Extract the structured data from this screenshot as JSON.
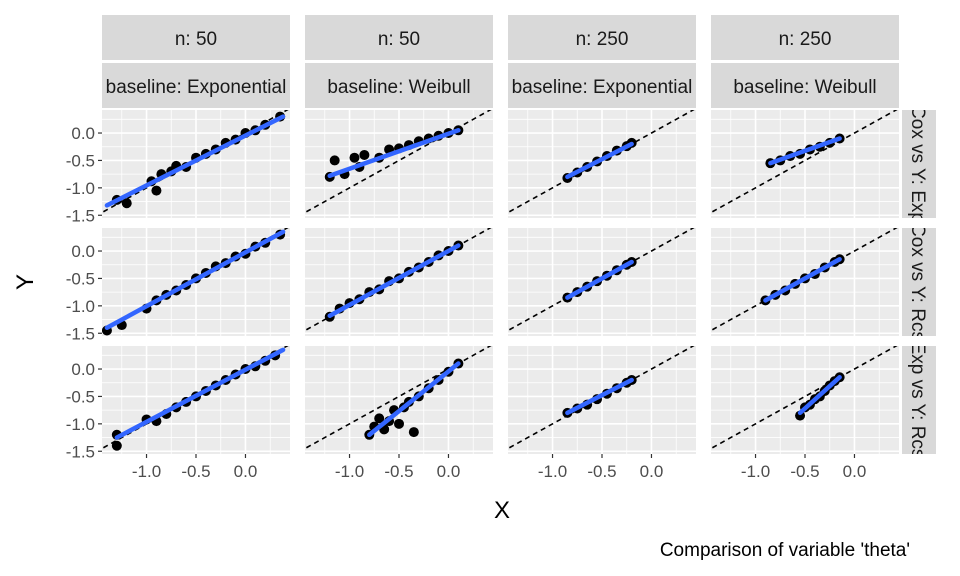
{
  "axis_titles": {
    "x": "X",
    "y": "Y"
  },
  "caption": "Comparison of variable 'theta'",
  "colors": {
    "panel_bg": "#ebebeb",
    "grid": "#ffffff",
    "strip_bg": "#d9d9d9",
    "point": "#000000",
    "fit": "#3366ff",
    "reference": "#000000",
    "axis_text": "#4d4d4d"
  },
  "chart_data": {
    "type": "scatter",
    "facet_columns": [
      {
        "n_label": "n: 50",
        "baseline_label": "baseline: Exponential"
      },
      {
        "n_label": "n: 50",
        "baseline_label": "baseline: Weibull"
      },
      {
        "n_label": "n: 250",
        "baseline_label": "baseline: Exponential"
      },
      {
        "n_label": "n: 250",
        "baseline_label": "baseline: Weibull"
      }
    ],
    "facet_rows": [
      {
        "label": "Cox vs Y: Exp"
      },
      {
        "label": "Cox vs Y: Rcs"
      },
      {
        "label": "Exp vs Y: Rcs"
      }
    ],
    "xlim": [
      -1.45,
      0.45
    ],
    "ylim": [
      -1.55,
      0.42
    ],
    "x_ticks": [
      -1.0,
      -0.5,
      0.0
    ],
    "x_tick_labels": [
      "-1.0",
      "-0.5",
      "0.0"
    ],
    "y_ticks": [
      -1.5,
      -1.0,
      -0.5,
      0.0
    ],
    "y_tick_labels": [
      "-1.5",
      "-1.0",
      "-0.5",
      "0.0"
    ],
    "reference_line": {
      "type": "identity",
      "style": "dashed"
    },
    "grid": true,
    "panels": [
      {
        "row": 0,
        "col": 0,
        "fit": [
          [
            -1.4,
            -1.32
          ],
          [
            0.38,
            0.3
          ]
        ],
        "points": [
          [
            -1.3,
            -1.22
          ],
          [
            -1.2,
            -1.28
          ],
          [
            -0.95,
            -0.88
          ],
          [
            -0.9,
            -1.05
          ],
          [
            -0.85,
            -0.75
          ],
          [
            -0.75,
            -0.7
          ],
          [
            -0.7,
            -0.6
          ],
          [
            -0.6,
            -0.62
          ],
          [
            -0.5,
            -0.45
          ],
          [
            -0.4,
            -0.38
          ],
          [
            -0.3,
            -0.3
          ],
          [
            -0.2,
            -0.18
          ],
          [
            -0.1,
            -0.12
          ],
          [
            0.0,
            0.0
          ],
          [
            0.1,
            0.05
          ],
          [
            0.2,
            0.15
          ],
          [
            0.35,
            0.3
          ]
        ]
      },
      {
        "row": 0,
        "col": 1,
        "fit": [
          [
            -1.2,
            -0.78
          ],
          [
            0.1,
            0.05
          ]
        ],
        "points": [
          [
            -1.2,
            -0.8
          ],
          [
            -1.15,
            -0.5
          ],
          [
            -1.05,
            -0.75
          ],
          [
            -0.95,
            -0.45
          ],
          [
            -0.9,
            -0.62
          ],
          [
            -0.85,
            -0.4
          ],
          [
            -0.7,
            -0.45
          ],
          [
            -0.6,
            -0.3
          ],
          [
            -0.5,
            -0.28
          ],
          [
            -0.4,
            -0.22
          ],
          [
            -0.3,
            -0.15
          ],
          [
            -0.2,
            -0.1
          ],
          [
            -0.1,
            -0.05
          ],
          [
            0.0,
            0.0
          ],
          [
            0.1,
            0.05
          ]
        ]
      },
      {
        "row": 0,
        "col": 2,
        "fit": [
          [
            -0.85,
            -0.8
          ],
          [
            -0.2,
            -0.2
          ]
        ],
        "points": [
          [
            -0.85,
            -0.82
          ],
          [
            -0.75,
            -0.72
          ],
          [
            -0.65,
            -0.62
          ],
          [
            -0.55,
            -0.52
          ],
          [
            -0.45,
            -0.42
          ],
          [
            -0.35,
            -0.32
          ],
          [
            -0.25,
            -0.24
          ],
          [
            -0.2,
            -0.18
          ]
        ]
      },
      {
        "row": 0,
        "col": 3,
        "fit": [
          [
            -0.85,
            -0.55
          ],
          [
            -0.15,
            -0.1
          ]
        ],
        "points": [
          [
            -0.85,
            -0.55
          ],
          [
            -0.75,
            -0.5
          ],
          [
            -0.65,
            -0.42
          ],
          [
            -0.55,
            -0.38
          ],
          [
            -0.45,
            -0.3
          ],
          [
            -0.35,
            -0.25
          ],
          [
            -0.25,
            -0.18
          ],
          [
            -0.15,
            -0.1
          ]
        ]
      },
      {
        "row": 1,
        "col": 0,
        "fit": [
          [
            -1.4,
            -1.4
          ],
          [
            0.38,
            0.35
          ]
        ],
        "points": [
          [
            -1.4,
            -1.45
          ],
          [
            -1.25,
            -1.35
          ],
          [
            -1.0,
            -1.05
          ],
          [
            -0.9,
            -0.9
          ],
          [
            -0.8,
            -0.8
          ],
          [
            -0.7,
            -0.72
          ],
          [
            -0.6,
            -0.62
          ],
          [
            -0.5,
            -0.5
          ],
          [
            -0.4,
            -0.4
          ],
          [
            -0.3,
            -0.28
          ],
          [
            -0.2,
            -0.22
          ],
          [
            -0.1,
            -0.1
          ],
          [
            0.0,
            -0.05
          ],
          [
            0.1,
            0.08
          ],
          [
            0.2,
            0.15
          ],
          [
            0.35,
            0.3
          ]
        ]
      },
      {
        "row": 1,
        "col": 1,
        "fit": [
          [
            -1.2,
            -1.18
          ],
          [
            0.1,
            0.1
          ]
        ],
        "points": [
          [
            -1.2,
            -1.2
          ],
          [
            -1.1,
            -1.05
          ],
          [
            -1.0,
            -0.95
          ],
          [
            -0.9,
            -0.88
          ],
          [
            -0.8,
            -0.75
          ],
          [
            -0.7,
            -0.7
          ],
          [
            -0.6,
            -0.55
          ],
          [
            -0.5,
            -0.5
          ],
          [
            -0.4,
            -0.38
          ],
          [
            -0.3,
            -0.3
          ],
          [
            -0.2,
            -0.2
          ],
          [
            -0.1,
            -0.08
          ],
          [
            0.0,
            0.0
          ],
          [
            0.1,
            0.1
          ]
        ]
      },
      {
        "row": 1,
        "col": 2,
        "fit": [
          [
            -0.85,
            -0.85
          ],
          [
            -0.2,
            -0.2
          ]
        ],
        "points": [
          [
            -0.85,
            -0.85
          ],
          [
            -0.75,
            -0.75
          ],
          [
            -0.65,
            -0.65
          ],
          [
            -0.55,
            -0.55
          ],
          [
            -0.45,
            -0.45
          ],
          [
            -0.35,
            -0.35
          ],
          [
            -0.25,
            -0.25
          ],
          [
            -0.2,
            -0.2
          ]
        ]
      },
      {
        "row": 1,
        "col": 3,
        "fit": [
          [
            -0.9,
            -0.9
          ],
          [
            -0.15,
            -0.15
          ]
        ],
        "points": [
          [
            -0.9,
            -0.9
          ],
          [
            -0.8,
            -0.8
          ],
          [
            -0.7,
            -0.72
          ],
          [
            -0.6,
            -0.6
          ],
          [
            -0.5,
            -0.5
          ],
          [
            -0.4,
            -0.42
          ],
          [
            -0.3,
            -0.3
          ],
          [
            -0.2,
            -0.2
          ],
          [
            -0.15,
            -0.15
          ]
        ]
      },
      {
        "row": 2,
        "col": 0,
        "fit": [
          [
            -1.3,
            -1.25
          ],
          [
            0.38,
            0.35
          ]
        ],
        "points": [
          [
            -1.3,
            -1.2
          ],
          [
            -1.3,
            -1.4
          ],
          [
            -1.0,
            -0.92
          ],
          [
            -0.9,
            -0.95
          ],
          [
            -0.8,
            -0.82
          ],
          [
            -0.7,
            -0.7
          ],
          [
            -0.6,
            -0.6
          ],
          [
            -0.5,
            -0.5
          ],
          [
            -0.4,
            -0.4
          ],
          [
            -0.3,
            -0.3
          ],
          [
            -0.2,
            -0.2
          ],
          [
            -0.1,
            -0.1
          ],
          [
            0.0,
            0.0
          ],
          [
            0.1,
            0.05
          ],
          [
            0.2,
            0.15
          ],
          [
            0.3,
            0.25
          ]
        ]
      },
      {
        "row": 2,
        "col": 1,
        "fit": [
          [
            -0.8,
            -1.2
          ],
          [
            0.1,
            0.1
          ]
        ],
        "points": [
          [
            -0.8,
            -1.2
          ],
          [
            -0.75,
            -1.05
          ],
          [
            -0.7,
            -0.9
          ],
          [
            -0.65,
            -1.1
          ],
          [
            -0.6,
            -0.95
          ],
          [
            -0.55,
            -0.75
          ],
          [
            -0.5,
            -1.0
          ],
          [
            -0.45,
            -0.7
          ],
          [
            -0.4,
            -0.6
          ],
          [
            -0.35,
            -1.15
          ],
          [
            -0.3,
            -0.5
          ],
          [
            -0.2,
            -0.35
          ],
          [
            -0.1,
            -0.2
          ],
          [
            0.0,
            -0.05
          ],
          [
            0.1,
            0.1
          ]
        ]
      },
      {
        "row": 2,
        "col": 2,
        "fit": [
          [
            -0.85,
            -0.8
          ],
          [
            -0.2,
            -0.2
          ]
        ],
        "points": [
          [
            -0.85,
            -0.8
          ],
          [
            -0.75,
            -0.72
          ],
          [
            -0.65,
            -0.65
          ],
          [
            -0.55,
            -0.55
          ],
          [
            -0.45,
            -0.45
          ],
          [
            -0.35,
            -0.35
          ],
          [
            -0.25,
            -0.25
          ],
          [
            -0.2,
            -0.2
          ]
        ]
      },
      {
        "row": 2,
        "col": 3,
        "fit": [
          [
            -0.55,
            -0.8
          ],
          [
            -0.15,
            -0.15
          ]
        ],
        "points": [
          [
            -0.55,
            -0.85
          ],
          [
            -0.5,
            -0.7
          ],
          [
            -0.45,
            -0.65
          ],
          [
            -0.4,
            -0.55
          ],
          [
            -0.35,
            -0.5
          ],
          [
            -0.3,
            -0.4
          ],
          [
            -0.25,
            -0.3
          ],
          [
            -0.2,
            -0.22
          ],
          [
            -0.15,
            -0.15
          ]
        ]
      }
    ]
  }
}
